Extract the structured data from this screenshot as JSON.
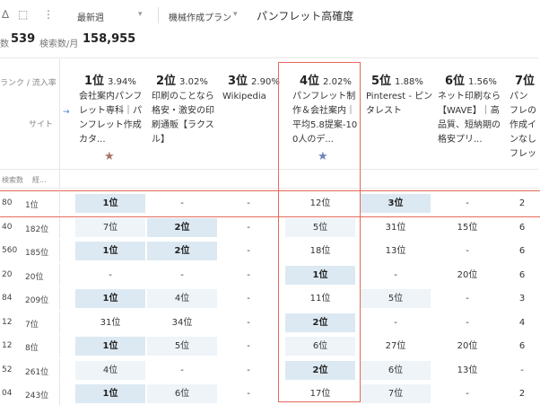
{
  "toolbar": {
    "icons": [
      "chart-icon",
      "screenshot-icon",
      "more-icon"
    ],
    "period_select": "最新週",
    "plan_select": "機械作成プラン",
    "keyword": "パンフレット高確度"
  },
  "stats": {
    "partial_label": "数",
    "count": "539",
    "search_label": "検索数/月",
    "search_volume": "158,955"
  },
  "corner": {
    "rank_label": "ランク / 流入率",
    "site_label": "サイト",
    "sub_search": "検索数",
    "sub_other": "経..."
  },
  "sites": [
    {
      "rank": "1位",
      "pct": "3.94%",
      "name": "会社案内パンフレット専科｜パンフレット作成 カタ...",
      "star": "brown"
    },
    {
      "rank": "2位",
      "pct": "3.02%",
      "name": "印刷のことなら格安・激安の印刷通販【ラクスル】",
      "star": ""
    },
    {
      "rank": "3位",
      "pct": "2.90%",
      "name": "Wikipedia",
      "star": ""
    },
    {
      "rank": "4位",
      "pct": "2.02%",
      "name": "パンフレット制作＆会社案内｜平均5.8提案-100人のデ...",
      "star": "blue"
    },
    {
      "rank": "5位",
      "pct": "1.88%",
      "name": "Pinterest - ピンタレスト",
      "star": ""
    },
    {
      "rank": "6位",
      "pct": "1.56%",
      "name": "ネット印刷なら【WAVE】｜高品質、短納期の格安プリ...",
      "star": ""
    },
    {
      "rank": "7位",
      "pct": "",
      "name": "パンフレの作成インなしフレッ",
      "star": ""
    }
  ],
  "rows": [
    {
      "vol": "80",
      "rank": "1位",
      "cells": [
        "1位",
        "-",
        "-",
        "12位",
        "3位",
        "-",
        "2"
      ]
    },
    {
      "vol": "40",
      "rank": "182位",
      "cells": [
        "7位",
        "2位",
        "-",
        "5位",
        "31位",
        "15位",
        "6"
      ]
    },
    {
      "vol": "560",
      "rank": "185位",
      "cells": [
        "1位",
        "2位",
        "-",
        "18位",
        "13位",
        "-",
        "6"
      ]
    },
    {
      "vol": "20",
      "rank": "20位",
      "cells": [
        "-",
        "-",
        "-",
        "1位",
        "-",
        "20位",
        "6"
      ]
    },
    {
      "vol": "84",
      "rank": "209位",
      "cells": [
        "1位",
        "4位",
        "-",
        "11位",
        "5位",
        "-",
        "3"
      ]
    },
    {
      "vol": "12",
      "rank": "7位",
      "cells": [
        "31位",
        "34位",
        "-",
        "2位",
        "-",
        "-",
        "4"
      ]
    },
    {
      "vol": "12",
      "rank": "8位",
      "cells": [
        "1位",
        "5位",
        "-",
        "6位",
        "27位",
        "20位",
        "6"
      ]
    },
    {
      "vol": "52",
      "rank": "261位",
      "cells": [
        "4位",
        "-",
        "-",
        "2位",
        "6位",
        "13位",
        "-"
      ]
    },
    {
      "vol": "04",
      "rank": "243位",
      "cells": [
        "1位",
        "6位",
        "-",
        "17位",
        "7位",
        "-",
        "2"
      ]
    }
  ],
  "colors": {
    "highlight_border": "#e36a5a",
    "cell_dark": "#dce9f2",
    "cell_light": "#eef4f8",
    "star_brown": "#a87466",
    "star_blue": "#6d86b8",
    "accent": "#3a7bd5"
  }
}
